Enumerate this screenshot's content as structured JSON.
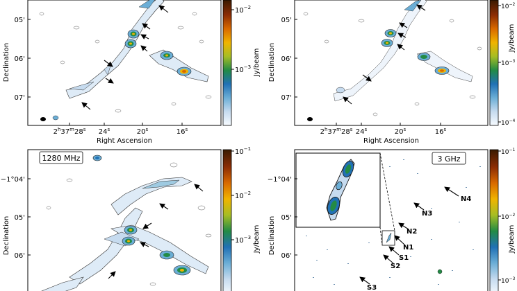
{
  "colormap": [
    "#f7fbff",
    "#c6dbef",
    "#6baed6",
    "#2171b5",
    "#238b45",
    "#a6bd24",
    "#f0b400",
    "#d96a00",
    "#8c2d04",
    "#3a1a00"
  ],
  "panels": {
    "top_left": {
      "y_axis_label": "Declination",
      "y_ticks": [
        "05'",
        "06'",
        "07'"
      ],
      "x_axis_label": "Right Ascension",
      "x_ticks": [
        {
          "h": "2",
          "hu": "h",
          "m": "37",
          "mu": "m",
          "s": "28",
          "su": "s"
        },
        {
          "s": "24",
          "su": "s"
        },
        {
          "s": "20",
          "su": "s"
        },
        {
          "s": "16",
          "su": "s"
        }
      ],
      "colorbar_label": "Jy/beam",
      "colorbar_ticks": [
        {
          "base": "10",
          "exp": "−2"
        },
        {
          "base": "10",
          "exp": "−3"
        }
      ]
    },
    "top_right": {
      "y_axis_label": "Declination",
      "y_ticks": [
        "05'",
        "06'",
        "07'"
      ],
      "x_axis_label": "Right Ascension",
      "x_ticks": [
        {
          "h": "2",
          "hu": "h",
          "m": "37",
          "mu": "m",
          "s": "28",
          "su": "s"
        },
        {
          "s": "24",
          "su": "s"
        },
        {
          "s": "20",
          "su": "s"
        },
        {
          "s": "16",
          "su": "s"
        }
      ],
      "colorbar_label": "Jy/beam",
      "colorbar_ticks": [
        {
          "base": "10",
          "exp": "−2"
        },
        {
          "base": "10",
          "exp": "−3"
        },
        {
          "base": "10",
          "exp": "−4"
        }
      ]
    },
    "bottom_left": {
      "frequency_label": "1280 MHz",
      "y_axis_label": "Declination",
      "y_ticks": [
        "−1°04'",
        "05'",
        "06'"
      ],
      "colorbar_label": "Jy/beam",
      "colorbar_ticks": [
        {
          "base": "10",
          "exp": "−1"
        },
        {
          "base": "10",
          "exp": "−2"
        },
        {
          "base": "10",
          "exp": "−3"
        }
      ]
    },
    "bottom_right": {
      "frequency_label": "3 GHz",
      "y_axis_label": "Declination",
      "y_ticks": [
        "−1°04'",
        "05'",
        "06'"
      ],
      "colorbar_label": "Jy/beam",
      "colorbar_ticks": [
        {
          "base": "10",
          "exp": "−1"
        },
        {
          "base": "10",
          "exp": "−2"
        },
        {
          "base": "10",
          "exp": "−3"
        }
      ],
      "source_labels": [
        "N4",
        "N3",
        "N2",
        "N1",
        "S1",
        "S2",
        "S3"
      ]
    }
  }
}
